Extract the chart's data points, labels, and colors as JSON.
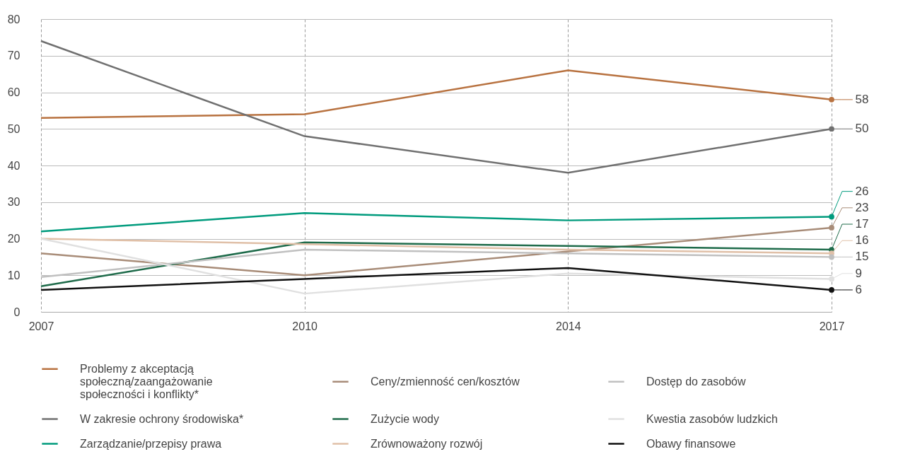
{
  "chart_data": {
    "type": "line",
    "categories": [
      "2007",
      "2010",
      "2014",
      "2017"
    ],
    "ylim": [
      0,
      80
    ],
    "yticks": [
      0,
      10,
      20,
      30,
      40,
      50,
      60,
      70,
      80
    ],
    "grid": true,
    "legend": "bottom",
    "series": [
      {
        "name": "Problemy z akceptacją społeczną/zaangażowanie społeczności i konflikty*",
        "color": "#b87240",
        "values": [
          53,
          54,
          66,
          58
        ],
        "value_labels": [
          null,
          null,
          null,
          "58"
        ]
      },
      {
        "name": "W zakresie ochrony środowiska*",
        "color": "#707070",
        "values": [
          74,
          48,
          38,
          50
        ],
        "value_labels": [
          null,
          null,
          null,
          "50"
        ]
      },
      {
        "name": "Zarządzanie/przepisy prawa",
        "color": "#009b7d",
        "values": [
          22,
          27,
          25,
          26
        ],
        "value_labels": [
          null,
          null,
          null,
          "26"
        ]
      },
      {
        "name": "Ceny/zmienność cen/kosztów",
        "color": "#a88c78",
        "values": [
          16,
          10,
          16.5,
          23
        ],
        "value_labels": [
          null,
          null,
          null,
          "23"
        ]
      },
      {
        "name": "Zużycie wody",
        "color": "#1e6b4a",
        "values": [
          7,
          19,
          18,
          17
        ],
        "value_labels": [
          null,
          null,
          null,
          "17"
        ]
      },
      {
        "name": "Zrównoważony rozwój",
        "color": "#e0c0a8",
        "values": [
          20,
          18.5,
          17,
          16
        ],
        "value_labels": [
          null,
          null,
          null,
          "16"
        ]
      },
      {
        "name": "Dostęp do zasobów",
        "color": "#c0c0c0",
        "values": [
          9.5,
          17,
          16,
          15
        ],
        "value_labels": [
          null,
          null,
          null,
          "15"
        ]
      },
      {
        "name": "Kwestia zasobów ludzkich",
        "color": "#e0e0e0",
        "values": [
          20,
          5,
          10.5,
          9
        ],
        "value_labels": [
          null,
          null,
          null,
          "9"
        ]
      },
      {
        "name": "Obawy finansowe",
        "color": "#111111",
        "values": [
          6,
          9,
          12,
          6
        ],
        "value_labels": [
          null,
          null,
          null,
          "6"
        ]
      }
    ]
  }
}
